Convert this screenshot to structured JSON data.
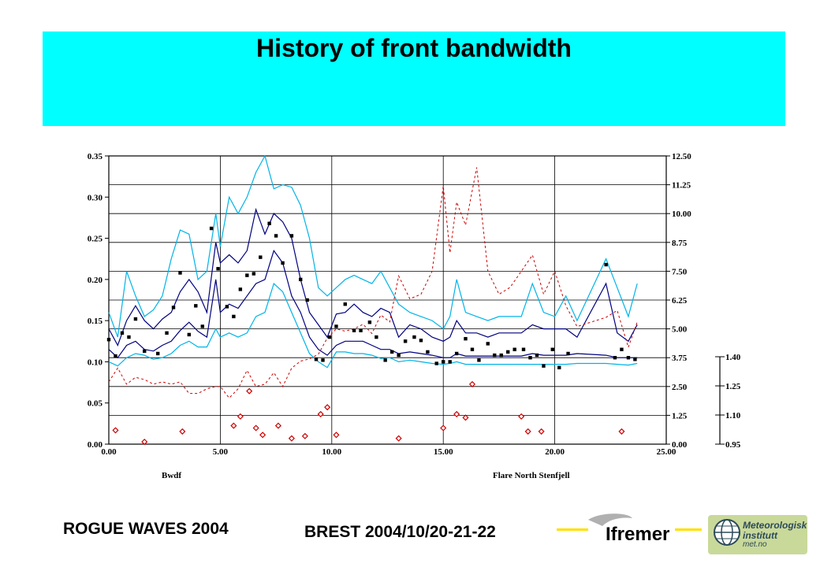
{
  "title": "History of front bandwidth",
  "footer": {
    "event": "ROGUE WAVES 2004",
    "location_date": "BREST  2004/10/20-21-22"
  },
  "logos": {
    "ifremer": "Ifremer",
    "met_line1": "Meteorologisk",
    "met_line2": "institutt",
    "met_line3": "met.no"
  },
  "colors": {
    "title_band": "#00ffff",
    "outer_band": "#00b4e8",
    "inner_band": "#000080",
    "dashed": "#cc0000",
    "red_markers": "#cc0000",
    "black_markers": "#000000"
  },
  "chart_data": {
    "type": "line",
    "xlabel_left": "Bwdf",
    "xlabel_right": "Flare North Stenfjell",
    "xlim": [
      0,
      25
    ],
    "x_ticks": [
      "0.00",
      "5.00",
      "10.00",
      "15.00",
      "20.00",
      "25.00"
    ],
    "ylim_left": [
      0,
      0.35
    ],
    "y_ticks_left": [
      "0.00",
      "0.05",
      "0.10",
      "0.15",
      "0.20",
      "0.25",
      "0.30",
      "0.35"
    ],
    "ylim_right": [
      0,
      12.5
    ],
    "y_ticks_right": [
      "0.00",
      "1.25",
      "2.50",
      "3.75",
      "5.00",
      "6.25",
      "7.50",
      "8.75",
      "10.00",
      "11.25",
      "12.50"
    ],
    "ylim_right2": [
      0.95,
      1.4
    ],
    "y_ticks_right2": [
      "0.95",
      "1.10",
      "1.25",
      "1.40"
    ],
    "grid": true,
    "series": [
      {
        "style": "outer-band-upper",
        "x": [
          0,
          0.4,
          0.8,
          1.2,
          1.6,
          2.0,
          2.4,
          2.8,
          3.2,
          3.6,
          4.0,
          4.4,
          4.8,
          5.0,
          5.4,
          5.8,
          6.2,
          6.6,
          7.0,
          7.4,
          7.8,
          8.2,
          8.6,
          9.0,
          9.4,
          9.8,
          10.2,
          10.6,
          11.0,
          11.4,
          11.8,
          12.2,
          12.6,
          13.0,
          13.5,
          14.0,
          14.5,
          15.0,
          15.3,
          15.6,
          16.0,
          16.5,
          17.0,
          17.5,
          18.0,
          18.5,
          19.0,
          19.5,
          20.0,
          20.5,
          21.0,
          22.3,
          22.8,
          23.3,
          23.7
        ],
        "y": [
          0.16,
          0.13,
          0.21,
          0.18,
          0.155,
          0.163,
          0.18,
          0.225,
          0.26,
          0.255,
          0.2,
          0.21,
          0.28,
          0.24,
          0.3,
          0.28,
          0.3,
          0.33,
          0.35,
          0.31,
          0.315,
          0.312,
          0.29,
          0.25,
          0.19,
          0.18,
          0.19,
          0.2,
          0.205,
          0.2,
          0.195,
          0.21,
          0.19,
          0.17,
          0.16,
          0.155,
          0.15,
          0.14,
          0.155,
          0.2,
          0.16,
          0.155,
          0.15,
          0.155,
          0.155,
          0.155,
          0.195,
          0.16,
          0.155,
          0.18,
          0.15,
          0.225,
          0.19,
          0.155,
          0.195
        ]
      },
      {
        "style": "inner-band-upper",
        "x": [
          0,
          0.4,
          0.8,
          1.2,
          1.6,
          2.0,
          2.4,
          2.8,
          3.2,
          3.6,
          4.0,
          4.4,
          4.8,
          5.0,
          5.4,
          5.8,
          6.2,
          6.6,
          7.0,
          7.4,
          7.8,
          8.2,
          8.6,
          9.0,
          9.4,
          9.8,
          10.2,
          10.6,
          11.0,
          11.4,
          11.8,
          12.2,
          12.6,
          13.0,
          13.5,
          14.0,
          14.5,
          15.0,
          15.3,
          15.6,
          16.0,
          16.5,
          17.0,
          17.5,
          18.0,
          18.5,
          19.0,
          19.5,
          20.0,
          20.5,
          21.0,
          22.3,
          22.8,
          23.3,
          23.7
        ],
        "y": [
          0.14,
          0.12,
          0.15,
          0.168,
          0.15,
          0.14,
          0.152,
          0.16,
          0.185,
          0.2,
          0.185,
          0.16,
          0.245,
          0.22,
          0.23,
          0.22,
          0.235,
          0.285,
          0.255,
          0.28,
          0.27,
          0.25,
          0.2,
          0.16,
          0.145,
          0.13,
          0.158,
          0.16,
          0.17,
          0.16,
          0.155,
          0.165,
          0.16,
          0.13,
          0.145,
          0.14,
          0.13,
          0.125,
          0.13,
          0.15,
          0.135,
          0.135,
          0.13,
          0.135,
          0.135,
          0.135,
          0.145,
          0.14,
          0.14,
          0.14,
          0.13,
          0.195,
          0.135,
          0.125,
          0.145
        ]
      },
      {
        "style": "inner-band-lower",
        "x": [
          0,
          0.4,
          0.8,
          1.2,
          1.6,
          2.0,
          2.4,
          2.8,
          3.2,
          3.6,
          4.0,
          4.4,
          4.8,
          5.0,
          5.4,
          5.8,
          6.2,
          6.6,
          7.0,
          7.4,
          7.8,
          8.2,
          8.6,
          9.0,
          9.4,
          9.8,
          10.2,
          10.6,
          11.0,
          11.4,
          11.8,
          12.2,
          12.6,
          13.0,
          13.5,
          14.0,
          14.5,
          15.0,
          15.3,
          15.6,
          16.0,
          16.5,
          17.0,
          17.5,
          18.0,
          18.5,
          19.0,
          19.5,
          20.0,
          20.5,
          21.0,
          22.3,
          22.8,
          23.3,
          23.7
        ],
        "y": [
          0.115,
          0.105,
          0.12,
          0.125,
          0.115,
          0.113,
          0.12,
          0.125,
          0.138,
          0.148,
          0.137,
          0.13,
          0.2,
          0.16,
          0.17,
          0.165,
          0.18,
          0.195,
          0.2,
          0.235,
          0.22,
          0.18,
          0.16,
          0.13,
          0.115,
          0.108,
          0.12,
          0.125,
          0.125,
          0.125,
          0.12,
          0.115,
          0.115,
          0.11,
          0.112,
          0.11,
          0.108,
          0.105,
          0.105,
          0.11,
          0.107,
          0.107,
          0.107,
          0.107,
          0.107,
          0.107,
          0.11,
          0.108,
          0.108,
          0.108,
          0.11,
          0.108,
          0.105,
          0.105,
          0.105
        ]
      },
      {
        "style": "outer-band-lower",
        "x": [
          0,
          0.4,
          0.8,
          1.2,
          1.6,
          2.0,
          2.4,
          2.8,
          3.2,
          3.6,
          4.0,
          4.4,
          4.8,
          5.0,
          5.4,
          5.8,
          6.2,
          6.6,
          7.0,
          7.4,
          7.8,
          8.2,
          8.6,
          9.0,
          9.4,
          9.8,
          10.2,
          10.6,
          11.0,
          11.4,
          11.8,
          12.2,
          12.6,
          13.0,
          13.5,
          14.0,
          14.5,
          15.0,
          15.3,
          15.6,
          16.0,
          16.5,
          17.0,
          17.5,
          18.0,
          18.5,
          19.0,
          19.5,
          20.0,
          20.5,
          21.0,
          22.3,
          22.8,
          23.3,
          23.7
        ],
        "y": [
          0.1,
          0.095,
          0.105,
          0.11,
          0.108,
          0.103,
          0.105,
          0.11,
          0.12,
          0.125,
          0.118,
          0.118,
          0.14,
          0.13,
          0.135,
          0.13,
          0.135,
          0.155,
          0.16,
          0.195,
          0.185,
          0.16,
          0.135,
          0.11,
          0.1,
          0.093,
          0.112,
          0.112,
          0.11,
          0.11,
          0.108,
          0.104,
          0.105,
          0.1,
          0.102,
          0.1,
          0.098,
          0.097,
          0.098,
          0.1,
          0.097,
          0.097,
          0.097,
          0.097,
          0.097,
          0.097,
          0.097,
          0.097,
          0.097,
          0.097,
          0.098,
          0.098,
          0.097,
          0.096,
          0.098
        ]
      },
      {
        "style": "dashed-right-axis",
        "x": [
          0,
          0.4,
          0.8,
          1.2,
          1.6,
          2.0,
          2.4,
          2.8,
          3.2,
          3.6,
          4.0,
          4.4,
          4.8,
          5.0,
          5.4,
          5.8,
          6.2,
          6.6,
          7.0,
          7.4,
          7.8,
          8.2,
          8.6,
          9.0,
          9.4,
          9.8,
          10.2,
          10.6,
          11.0,
          11.4,
          11.8,
          12.2,
          12.6,
          13.0,
          13.5,
          14.0,
          14.5,
          15.0,
          15.3,
          15.6,
          16.0,
          16.5,
          17.0,
          17.5,
          18.0,
          18.5,
          19.0,
          19.5,
          20.0,
          20.5,
          21.0,
          22.3,
          22.8,
          23.3,
          23.7
        ],
        "y": [
          2.7,
          3.3,
          2.6,
          2.9,
          2.8,
          2.6,
          2.7,
          2.6,
          2.7,
          2.2,
          2.2,
          2.4,
          2.5,
          2.5,
          2.0,
          2.4,
          3.2,
          2.5,
          2.6,
          3.1,
          2.5,
          3.3,
          3.6,
          3.7,
          3.9,
          4.6,
          5.0,
          4.9,
          5.0,
          5.2,
          4.8,
          5.6,
          5.3,
          7.3,
          6.3,
          6.5,
          7.5,
          11.2,
          8.3,
          10.5,
          9.5,
          12.0,
          7.5,
          6.5,
          6.8,
          7.5,
          8.2,
          6.5,
          7.5,
          6.0,
          5.1,
          5.5,
          5.8,
          4.2,
          5.3
        ]
      }
    ],
    "markers_black": {
      "x": [
        0.0,
        0.3,
        0.6,
        0.9,
        1.2,
        1.6,
        2.2,
        2.6,
        2.9,
        3.2,
        3.6,
        3.9,
        4.2,
        4.6,
        4.9,
        5.3,
        5.6,
        5.9,
        6.2,
        6.5,
        6.8,
        7.2,
        7.5,
        7.8,
        8.2,
        8.6,
        8.9,
        9.3,
        9.6,
        9.9,
        10.2,
        10.6,
        11.0,
        11.3,
        11.7,
        12.0,
        12.4,
        12.7,
        13.0,
        13.3,
        13.7,
        14.0,
        14.3,
        14.7,
        15.0,
        15.3,
        15.6,
        16.0,
        16.3,
        16.6,
        17.0,
        17.3,
        17.6,
        17.9,
        18.2,
        18.6,
        18.9,
        19.2,
        19.5,
        19.9,
        20.2,
        20.6,
        22.3,
        22.7,
        23.0,
        23.3,
        23.6
      ],
      "y": [
        0.127,
        0.107,
        0.135,
        0.13,
        0.152,
        0.113,
        0.11,
        0.135,
        0.166,
        0.208,
        0.133,
        0.168,
        0.143,
        0.262,
        0.213,
        0.167,
        0.155,
        0.188,
        0.205,
        0.207,
        0.227,
        0.268,
        0.253,
        0.22,
        0.253,
        0.2,
        0.175,
        0.103,
        0.102,
        0.13,
        0.143,
        0.17,
        0.138,
        0.138,
        0.148,
        0.13,
        0.102,
        0.112,
        0.108,
        0.125,
        0.13,
        0.126,
        0.112,
        0.098,
        0.1,
        0.1,
        0.11,
        0.128,
        0.115,
        0.102,
        0.122,
        0.108,
        0.108,
        0.112,
        0.115,
        0.115,
        0.105,
        0.108,
        0.095,
        0.115,
        0.093,
        0.11,
        0.218,
        0.105,
        0.115,
        0.105,
        0.103
      ]
    },
    "markers_red": {
      "x": [
        0.3,
        1.6,
        3.3,
        5.6,
        5.9,
        6.3,
        6.6,
        6.9,
        7.6,
        8.2,
        8.8,
        9.5,
        9.8,
        10.2,
        13.0,
        15.0,
        15.6,
        16.0,
        16.3,
        18.5,
        18.8,
        19.4,
        23.0
      ],
      "y": [
        0.6,
        0.1,
        0.55,
        0.8,
        1.2,
        2.3,
        0.7,
        0.4,
        0.8,
        0.25,
        0.35,
        1.3,
        1.6,
        0.4,
        0.25,
        0.7,
        1.3,
        1.15,
        2.6,
        1.2,
        0.55,
        0.55,
        0.55
      ]
    }
  }
}
